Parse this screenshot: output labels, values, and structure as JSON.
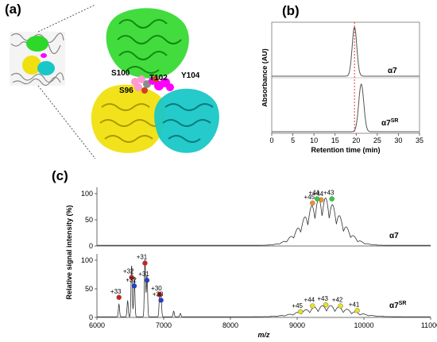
{
  "panels": {
    "a": {
      "label": "(a)",
      "residues": [
        "S100",
        "T102",
        "Y104",
        "S96"
      ],
      "colors": {
        "green": "#2ed82a",
        "yellow": "#f0e010",
        "cyan": "#19c7c8",
        "magenta": "#ff00ff",
        "pink": "#ff9ad2",
        "gray": "#8c8c8c"
      }
    },
    "b": {
      "label": "(b)",
      "chart_data": {
        "type": "line",
        "xlabel": "Retention time (min)",
        "ylabel": "Absorbance (AU)",
        "xlim": [
          0,
          35
        ],
        "xticks": [
          "0",
          "5",
          "10",
          "15",
          "20",
          "25",
          "30",
          "35"
        ],
        "dashed_marker_x": 19.6,
        "series": [
          {
            "name": "α7",
            "label_main": "α7",
            "label_sup": "",
            "peak_x": 19.6,
            "color": "#555555"
          },
          {
            "name": "α7SR",
            "label_main": "α7",
            "label_sup": "SR",
            "peak_x": 21.2,
            "color": "#555555"
          }
        ]
      }
    },
    "c": {
      "label": "(c)",
      "chart_data": {
        "type": "line",
        "xlabel": "m/z",
        "ylabel": "Relative signal intensity (%)",
        "xlim": [
          6000,
          11000
        ],
        "xticks": [
          "6000",
          "7000",
          "8000",
          "9000",
          "10000",
          "11000"
        ],
        "ylim": [
          0,
          100
        ],
        "yticks": [
          "0",
          "50",
          "100"
        ],
        "top": {
          "label_main": "α7",
          "label_sup": "",
          "annotations": [
            {
              "text": "+45",
              "mz": 9230,
              "y": 82,
              "dot": "#f0902c"
            },
            {
              "text": "+44",
              "mz": 9360,
              "y": 88,
              "dot": "#f0902c"
            },
            {
              "text": "+44",
              "mz": 9300,
              "y": 90,
              "dot": "#2ecc40"
            },
            {
              "text": "+43",
              "mz": 9520,
              "y": 90,
              "dot": "#2ecc40"
            }
          ]
        },
        "bottom": {
          "label_main": "α7",
          "label_sup": "SR",
          "annotations": [
            {
              "text": "+33",
              "mz": 6330,
              "y": 35,
              "dot": "#d11f1f"
            },
            {
              "text": "+32",
              "mz": 6520,
              "y": 70,
              "dot": "#d11f1f"
            },
            {
              "text": "+31",
              "mz": 6720,
              "y": 95,
              "dot": "#d11f1f"
            },
            {
              "text": "+32",
              "mz": 6560,
              "y": 55,
              "dot": "#1f3fd1"
            },
            {
              "text": "+31",
              "mz": 6750,
              "y": 65,
              "dot": "#1f3fd1"
            },
            {
              "text": "+30",
              "mz": 6940,
              "y": 40,
              "dot": "#d11f1f"
            },
            {
              "text": "+30",
              "mz": 6960,
              "y": 30,
              "dot": "#1f3fd1"
            },
            {
              "text": "+45",
              "mz": 9050,
              "y": 10,
              "dot": "#e8e020"
            },
            {
              "text": "+44",
              "mz": 9230,
              "y": 20,
              "dot": "#e8e020"
            },
            {
              "text": "+43",
              "mz": 9430,
              "y": 22,
              "dot": "#e8e020"
            },
            {
              "text": "+42",
              "mz": 9650,
              "y": 20,
              "dot": "#e8e020"
            },
            {
              "text": "+41",
              "mz": 9900,
              "y": 12,
              "dot": "#e8e020"
            }
          ]
        }
      }
    }
  }
}
